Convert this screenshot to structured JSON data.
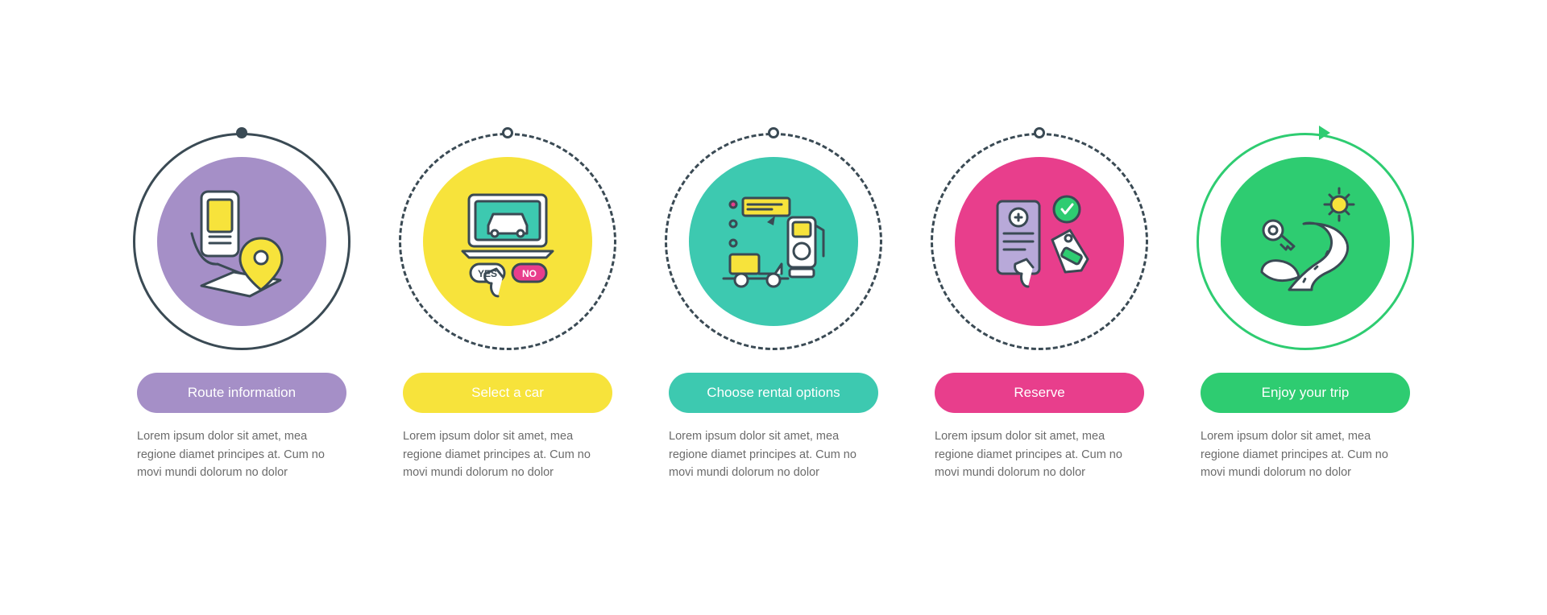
{
  "background_color": "#ffffff",
  "desc_color": "#6b6b6b",
  "pill_text_color": "#ffffff",
  "steps": [
    {
      "id": "route-info",
      "title": "Route information",
      "description": "Lorem ipsum dolor sit amet, mea regione diamet principes at. Cum no movi mundi dolorum no dolor",
      "color": "#a58fc7",
      "ring_color": "#3a4a54",
      "ring_style": "solid",
      "marker": "dot-filled",
      "icon": "phone-map-pin",
      "icon_stroke": "#3a4a54",
      "icon_accent": "#f7e33b"
    },
    {
      "id": "select-car",
      "title": "Select a car",
      "description": "Lorem ipsum dolor sit amet, mea regione diamet principes at. Cum no movi mundi dolorum no dolor",
      "color": "#f7e33b",
      "ring_color": "#3a4a54",
      "ring_style": "dashed",
      "marker": "dot-outline",
      "icon": "laptop-car-choice",
      "icon_stroke": "#3a4a54",
      "icon_accent": "#3dc9b0",
      "icon_accent2": "#e83e8c"
    },
    {
      "id": "rental-options",
      "title": "Choose rental options",
      "description": "Lorem ipsum dolor sit amet, mea regione diamet principes at. Cum no movi mundi dolorum no dolor",
      "color": "#3dc9b0",
      "ring_color": "#3a4a54",
      "ring_style": "dashed",
      "marker": "dot-outline",
      "icon": "fuel-truck-options",
      "icon_stroke": "#3a4a54",
      "icon_accent": "#f7e33b",
      "icon_accent2": "#e83e8c"
    },
    {
      "id": "reserve",
      "title": "Reserve",
      "description": "Lorem ipsum dolor sit amet, mea regione diamet principes at. Cum no movi mundi dolorum no dolor",
      "color": "#e83e8c",
      "ring_color": "#3a4a54",
      "ring_style": "dashed",
      "marker": "dot-outline",
      "icon": "reserve-tag-check",
      "icon_stroke": "#3a4a54",
      "icon_accent": "#2ecc71",
      "icon_accent2": "#b8a9d9"
    },
    {
      "id": "enjoy-trip",
      "title": "Enjoy your trip",
      "description": "Lorem ipsum dolor sit amet, mea regione diamet principes at. Cum no movi mundi dolorum no dolor",
      "color": "#2ecc71",
      "ring_color": "#2ecc71",
      "ring_style": "solid",
      "marker": "arrow",
      "icon": "road-sun-key",
      "icon_stroke": "#3a4a54",
      "icon_accent": "#f7e33b"
    }
  ]
}
